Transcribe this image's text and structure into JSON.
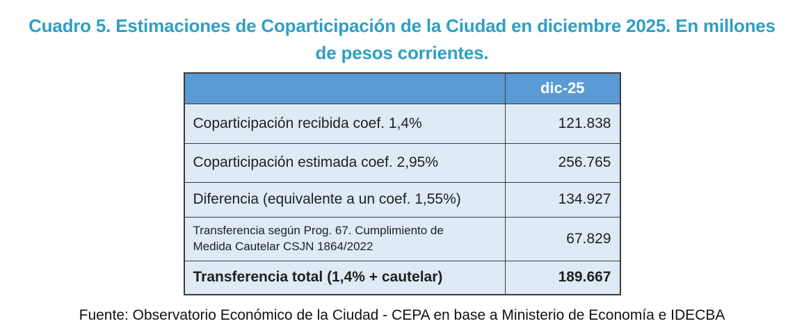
{
  "theme": {
    "title_color": "#2E9FC4",
    "header_bg": "#5B9BD5",
    "header_text": "#FFFFFF",
    "row_bg": "#DEEAF6",
    "border_color": "#3B3B3B",
    "text_color": "#1F1F1F"
  },
  "title": "Cuadro 5. Estimaciones de Coparticipación de la Ciudad en diciembre 2025. En millones de pesos corrientes.",
  "table": {
    "value_column_header": "dic-25",
    "rows": [
      {
        "label": "Coparticipación recibida coef. 1,4%",
        "value": "121.838"
      },
      {
        "label": "Coparticipación estimada coef. 2,95%",
        "value": "256.765"
      },
      {
        "label": "Diferencia (equivalente a un coef. 1,55%)",
        "value": "134.927"
      },
      {
        "label": "Transferencia según Prog. 67. Cumplimiento de Medida Cautelar CSJN 1864/2022",
        "value": "67.829"
      },
      {
        "label": "Transferencia total (1,4% + cautelar)",
        "value": "189.667"
      }
    ]
  },
  "source": "Fuente: Observatorio Económico de la Ciudad - CEPA en base a Ministerio de Economía e IDECBA",
  "chart_data": {
    "type": "table",
    "title": "Cuadro 5. Estimaciones de Coparticipación de la Ciudad en diciembre 2025. En millones de pesos corrientes.",
    "unit": "millones de pesos corrientes",
    "columns": [
      "",
      "dic-25"
    ],
    "rows": [
      [
        "Coparticipación recibida coef. 1,4%",
        121838
      ],
      [
        "Coparticipación estimada coef. 2,95%",
        256765
      ],
      [
        "Diferencia (equivalente a un coef. 1,55%)",
        134927
      ],
      [
        "Transferencia según Prog. 67. Cumplimiento de Medida Cautelar CSJN 1864/2022",
        67829
      ],
      [
        "Transferencia total (1,4% + cautelar)",
        189667
      ]
    ],
    "source": "Fuente: Observatorio Económico de la Ciudad - CEPA en base a Ministerio de Economía e IDECBA"
  }
}
